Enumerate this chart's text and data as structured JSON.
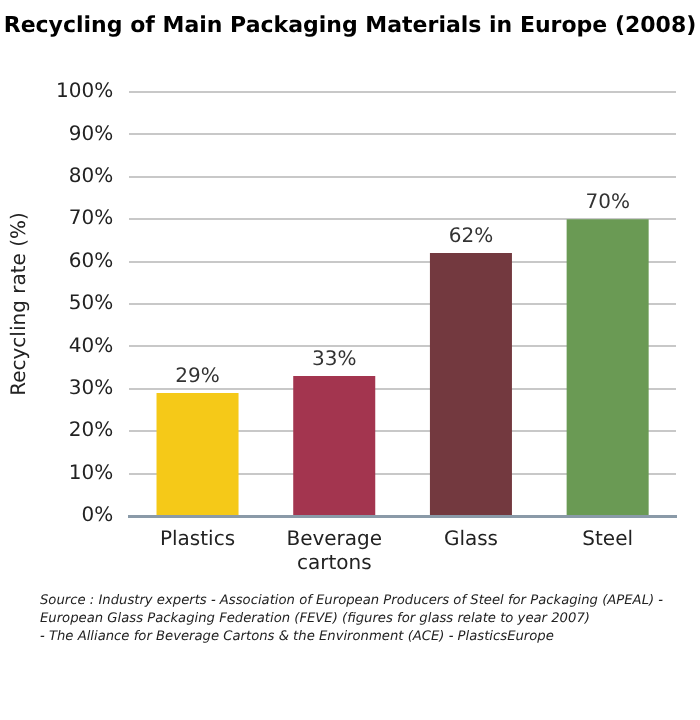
{
  "chart_data": {
    "type": "bar",
    "title": "Recycling of Main Packaging Materials in Europe (2008)",
    "ylabel": "Recycling rate (%)",
    "categories": [
      "Plastics",
      "Beverage cartons",
      "Glass",
      "Steel"
    ],
    "values": [
      29,
      33,
      62,
      70
    ],
    "colors": [
      "#f5c918",
      "#a3354f",
      "#73393f",
      "#6a9a54"
    ],
    "value_labels": [
      "29%",
      "33%",
      "62%",
      "70%"
    ],
    "ylim": [
      0,
      100
    ],
    "yticks": [
      {
        "value": 0,
        "label": "0%"
      },
      {
        "value": 10,
        "label": "10%"
      },
      {
        "value": 20,
        "label": "20%"
      },
      {
        "value": 30,
        "label": "30%"
      },
      {
        "value": 40,
        "label": "40%"
      },
      {
        "value": 50,
        "label": "50%"
      },
      {
        "value": 60,
        "label": "60%"
      },
      {
        "value": 70,
        "label": "70%"
      },
      {
        "value": 80,
        "label": "80%"
      },
      {
        "value": 90,
        "label": "90%"
      },
      {
        "value": 100,
        "label": "100%"
      }
    ],
    "grid": "y",
    "legend": false,
    "annotations": [
      "Source : Industry experts -  Association of European Producers of Steel for Packaging (APEAL) -",
      "European Glass Packaging Federation (FEVE) (figures for glass relate to year 2007)",
      "- The Alliance for Beverage Cartons & the Environment (ACE) - PlasticsEurope"
    ]
  }
}
